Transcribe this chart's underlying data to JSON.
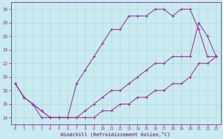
{
  "xlabel": "Windchill (Refroidissement éolien,°C)",
  "bg_color": "#c8eaf0",
  "line_color": "#993399",
  "grid_color": "#aad4d4",
  "xlim_min": -0.5,
  "xlim_max": 23.5,
  "ylim_min": 13.0,
  "ylim_max": 31.0,
  "xticks": [
    0,
    1,
    2,
    3,
    4,
    5,
    6,
    7,
    8,
    9,
    10,
    11,
    12,
    13,
    14,
    15,
    16,
    17,
    18,
    19,
    20,
    21,
    22,
    23
  ],
  "yticks": [
    14,
    16,
    18,
    20,
    22,
    24,
    26,
    28,
    30
  ],
  "line1_x": [
    0,
    1,
    2,
    3,
    4,
    5,
    6,
    7,
    8,
    9,
    10,
    11,
    12,
    13,
    14,
    15,
    16,
    17,
    18,
    19,
    20,
    21,
    22,
    23
  ],
  "line1_y": [
    19,
    17,
    16,
    14,
    14,
    14,
    14,
    19,
    21,
    23,
    25,
    27,
    27,
    29,
    29,
    29,
    30,
    30,
    29,
    30,
    30,
    27,
    23,
    23
  ],
  "line2_x": [
    0,
    1,
    2,
    3,
    4,
    5,
    6,
    7,
    8,
    9,
    10,
    11,
    12,
    13,
    14,
    15,
    16,
    17,
    18,
    19,
    20,
    21,
    22,
    23
  ],
  "line2_y": [
    19,
    17,
    16,
    15,
    14,
    14,
    14,
    14,
    15,
    16,
    17,
    18,
    18,
    19,
    20,
    21,
    22,
    22,
    23,
    23,
    23,
    28,
    26,
    23
  ],
  "line3_x": [
    0,
    1,
    2,
    3,
    4,
    5,
    6,
    7,
    8,
    9,
    10,
    11,
    12,
    13,
    14,
    15,
    16,
    17,
    18,
    19,
    20,
    21,
    22,
    23
  ],
  "line3_y": [
    19,
    17,
    16,
    15,
    14,
    14,
    14,
    14,
    14,
    14,
    15,
    15,
    16,
    16,
    17,
    17,
    18,
    18,
    19,
    19,
    20,
    22,
    22,
    23
  ]
}
